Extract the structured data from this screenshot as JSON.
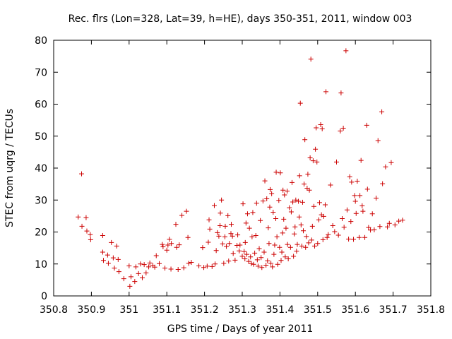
{
  "chart_data": {
    "type": "scatter",
    "title": "Rec. flrs (Lon=328, Lat=39, h=HE), days 350-351, 2011, window 003",
    "xlabel": "GPS time / Days of year 2011",
    "ylabel": "STEC from uqrg / TECUs",
    "xlim": [
      350.8,
      351.8
    ],
    "ylim": [
      0,
      80
    ],
    "xticks": [
      "350.8",
      "350.9",
      "351",
      "351.1",
      "351.2",
      "351.3",
      "351.4",
      "351.5",
      "351.6",
      "351.7",
      "351.8"
    ],
    "yticks": [
      "0",
      "10",
      "20",
      "30",
      "40",
      "50",
      "60",
      "70",
      "80"
    ],
    "marker": "plus",
    "color": "#cc0000",
    "grid": false,
    "points": [
      [
        350.865,
        24.7
      ],
      [
        350.874,
        38.2
      ],
      [
        350.875,
        21.8
      ],
      [
        350.886,
        24.5
      ],
      [
        350.888,
        20.3
      ],
      [
        350.897,
        19.2
      ],
      [
        350.898,
        17.6
      ],
      [
        350.93,
        18.9
      ],
      [
        350.93,
        13.7
      ],
      [
        350.932,
        11.1
      ],
      [
        350.943,
        12.8
      ],
      [
        350.945,
        10.2
      ],
      [
        350.953,
        16.7
      ],
      [
        350.958,
        11.9
      ],
      [
        350.961,
        8.7
      ],
      [
        350.967,
        15.6
      ],
      [
        350.971,
        11.4
      ],
      [
        350.973,
        7.6
      ],
      [
        350.986,
        5.4
      ],
      [
        351.0,
        9.4
      ],
      [
        351.002,
        3.0
      ],
      [
        351.005,
        6.0
      ],
      [
        351.015,
        4.5
      ],
      [
        351.018,
        9.1
      ],
      [
        351.025,
        7.0
      ],
      [
        351.03,
        10.0
      ],
      [
        351.035,
        5.7
      ],
      [
        351.04,
        9.8
      ],
      [
        351.045,
        7.2
      ],
      [
        351.052,
        9.1
      ],
      [
        351.055,
        10.3
      ],
      [
        351.063,
        9.5
      ],
      [
        351.068,
        9.0
      ],
      [
        351.072,
        12.6
      ],
      [
        351.08,
        10.1
      ],
      [
        351.088,
        16.1
      ],
      [
        351.09,
        15.4
      ],
      [
        351.095,
        8.7
      ],
      [
        351.1,
        14.3
      ],
      [
        351.103,
        15.9
      ],
      [
        351.107,
        17.7
      ],
      [
        351.111,
        8.4
      ],
      [
        351.112,
        16.4
      ],
      [
        351.124,
        22.4
      ],
      [
        351.126,
        15.2
      ],
      [
        351.13,
        8.3
      ],
      [
        351.133,
        16.0
      ],
      [
        351.14,
        25.2
      ],
      [
        351.145,
        8.8
      ],
      [
        351.152,
        26.5
      ],
      [
        351.156,
        18.3
      ],
      [
        351.158,
        10.2
      ],
      [
        351.165,
        10.5
      ],
      [
        351.185,
        9.4
      ],
      [
        351.195,
        15.1
      ],
      [
        351.198,
        8.9
      ],
      [
        351.207,
        9.3
      ],
      [
        351.21,
        16.8
      ],
      [
        351.212,
        23.8
      ],
      [
        351.214,
        20.9
      ],
      [
        351.22,
        9.2
      ],
      [
        351.226,
        28.3
      ],
      [
        351.228,
        10.0
      ],
      [
        351.231,
        14.2
      ],
      [
        351.234,
        19.8
      ],
      [
        351.238,
        18.7
      ],
      [
        351.241,
        22.0
      ],
      [
        351.242,
        25.9
      ],
      [
        351.245,
        30.0
      ],
      [
        351.248,
        16.3
      ],
      [
        351.251,
        10.2
      ],
      [
        351.254,
        18.5
      ],
      [
        351.255,
        21.8
      ],
      [
        351.258,
        15.5
      ],
      [
        351.262,
        25.1
      ],
      [
        351.264,
        10.9
      ],
      [
        351.266,
        16.4
      ],
      [
        351.27,
        19.5
      ],
      [
        351.271,
        22.4
      ],
      [
        351.274,
        18.7
      ],
      [
        351.276,
        13.3
      ],
      [
        351.281,
        11.2
      ],
      [
        351.286,
        15.8
      ],
      [
        351.288,
        19.1
      ],
      [
        351.292,
        14.1
      ],
      [
        351.294,
        15.9
      ],
      [
        351.3,
        12.4
      ],
      [
        351.302,
        28.8
      ],
      [
        351.305,
        13.9
      ],
      [
        351.307,
        11.6
      ],
      [
        351.308,
        16.7
      ],
      [
        351.31,
        22.8
      ],
      [
        351.312,
        13.0
      ],
      [
        351.314,
        25.7
      ],
      [
        351.317,
        10.8
      ],
      [
        351.319,
        21.2
      ],
      [
        351.322,
        12.2
      ],
      [
        351.324,
        10.1
      ],
      [
        351.326,
        18.5
      ],
      [
        351.328,
        26.1
      ],
      [
        351.33,
        9.9
      ],
      [
        351.333,
        13.4
      ],
      [
        351.336,
        18.9
      ],
      [
        351.338,
        29.0
      ],
      [
        351.34,
        11.3
      ],
      [
        351.342,
        9.3
      ],
      [
        351.345,
        14.8
      ],
      [
        351.348,
        23.6
      ],
      [
        351.35,
        12.0
      ],
      [
        351.352,
        8.9
      ],
      [
        351.355,
        29.7
      ],
      [
        351.358,
        13.7
      ],
      [
        351.36,
        36.0
      ],
      [
        351.363,
        9.6
      ],
      [
        351.365,
        30.4
      ],
      [
        351.367,
        11.0
      ],
      [
        351.369,
        21.3
      ],
      [
        351.371,
        16.4
      ],
      [
        351.373,
        27.8
      ],
      [
        351.374,
        33.3
      ],
      [
        351.376,
        10.2
      ],
      [
        351.378,
        32.0
      ],
      [
        351.38,
        9.1
      ],
      [
        351.382,
        26.2
      ],
      [
        351.384,
        13.0
      ],
      [
        351.386,
        15.9
      ],
      [
        351.389,
        24.2
      ],
      [
        351.39,
        38.7
      ],
      [
        351.392,
        18.5
      ],
      [
        351.394,
        9.9
      ],
      [
        351.397,
        29.9
      ],
      [
        351.399,
        15.2
      ],
      [
        351.401,
        38.5
      ],
      [
        351.403,
        11.1
      ],
      [
        351.405,
        13.7
      ],
      [
        351.407,
        19.7
      ],
      [
        351.408,
        33.1
      ],
      [
        351.41,
        24.0
      ],
      [
        351.412,
        31.6
      ],
      [
        351.414,
        12.2
      ],
      [
        351.416,
        21.2
      ],
      [
        351.419,
        32.8
      ],
      [
        351.42,
        16.1
      ],
      [
        351.422,
        11.6
      ],
      [
        351.425,
        27.6
      ],
      [
        351.428,
        15.2
      ],
      [
        351.43,
        26.3
      ],
      [
        351.432,
        35.5
      ],
      [
        351.434,
        29.4
      ],
      [
        351.436,
        12.4
      ],
      [
        351.438,
        19.4
      ],
      [
        351.44,
        21.6
      ],
      [
        351.442,
        30.0
      ],
      [
        351.444,
        14.0
      ],
      [
        351.446,
        16.1
      ],
      [
        351.449,
        29.6
      ],
      [
        351.451,
        24.7
      ],
      [
        351.452,
        37.6
      ],
      [
        351.454,
        60.3
      ],
      [
        351.456,
        22.2
      ],
      [
        351.458,
        15.6
      ],
      [
        351.46,
        29.3
      ],
      [
        351.462,
        20.4
      ],
      [
        351.464,
        35.0
      ],
      [
        351.466,
        48.9
      ],
      [
        351.468,
        15.2
      ],
      [
        351.47,
        18.6
      ],
      [
        351.472,
        33.7
      ],
      [
        351.474,
        38.1
      ],
      [
        351.476,
        16.6
      ],
      [
        351.478,
        33.1
      ],
      [
        351.48,
        43.2
      ],
      [
        351.482,
        74.1
      ],
      [
        351.484,
        17.5
      ],
      [
        351.486,
        21.8
      ],
      [
        351.488,
        42.3
      ],
      [
        351.49,
        28.0
      ],
      [
        351.492,
        15.6
      ],
      [
        351.494,
        45.9
      ],
      [
        351.496,
        52.6
      ],
      [
        351.498,
        41.9
      ],
      [
        351.5,
        16.4
      ],
      [
        351.503,
        23.8
      ],
      [
        351.505,
        29.2
      ],
      [
        351.508,
        53.6
      ],
      [
        351.51,
        25.4
      ],
      [
        351.512,
        52.3
      ],
      [
        351.514,
        17.6
      ],
      [
        351.516,
        24.9
      ],
      [
        351.52,
        28.5
      ],
      [
        351.522,
        63.9
      ],
      [
        351.525,
        18.3
      ],
      [
        351.528,
        19.2
      ],
      [
        351.534,
        34.7
      ],
      [
        351.54,
        22.0
      ],
      [
        351.545,
        20.1
      ],
      [
        351.55,
        41.9
      ],
      [
        351.555,
        19.0
      ],
      [
        351.56,
        51.6
      ],
      [
        351.562,
        63.5
      ],
      [
        351.565,
        24.2
      ],
      [
        351.568,
        52.5
      ],
      [
        351.57,
        21.5
      ],
      [
        351.575,
        76.7
      ],
      [
        351.578,
        26.9
      ],
      [
        351.582,
        17.8
      ],
      [
        351.585,
        37.3
      ],
      [
        351.588,
        23.3
      ],
      [
        351.59,
        35.6
      ],
      [
        351.595,
        17.7
      ],
      [
        351.598,
        31.4
      ],
      [
        351.6,
        29.6
      ],
      [
        351.602,
        25.8
      ],
      [
        351.605,
        35.9
      ],
      [
        351.61,
        18.3
      ],
      [
        351.612,
        31.4
      ],
      [
        351.615,
        42.4
      ],
      [
        351.618,
        28.2
      ],
      [
        351.62,
        26.5
      ],
      [
        351.625,
        18.3
      ],
      [
        351.63,
        53.4
      ],
      [
        351.632,
        33.4
      ],
      [
        351.635,
        21.4
      ],
      [
        351.64,
        20.6
      ],
      [
        351.645,
        25.7
      ],
      [
        351.65,
        20.7
      ],
      [
        351.655,
        30.6
      ],
      [
        351.66,
        48.6
      ],
      [
        351.665,
        21.7
      ],
      [
        351.67,
        57.6
      ],
      [
        351.672,
        35.1
      ],
      [
        351.68,
        40.4
      ],
      [
        351.685,
        21.6
      ],
      [
        351.69,
        22.7
      ],
      [
        351.695,
        41.7
      ],
      [
        351.705,
        22.2
      ],
      [
        351.715,
        23.4
      ],
      [
        351.725,
        23.7
      ]
    ]
  }
}
